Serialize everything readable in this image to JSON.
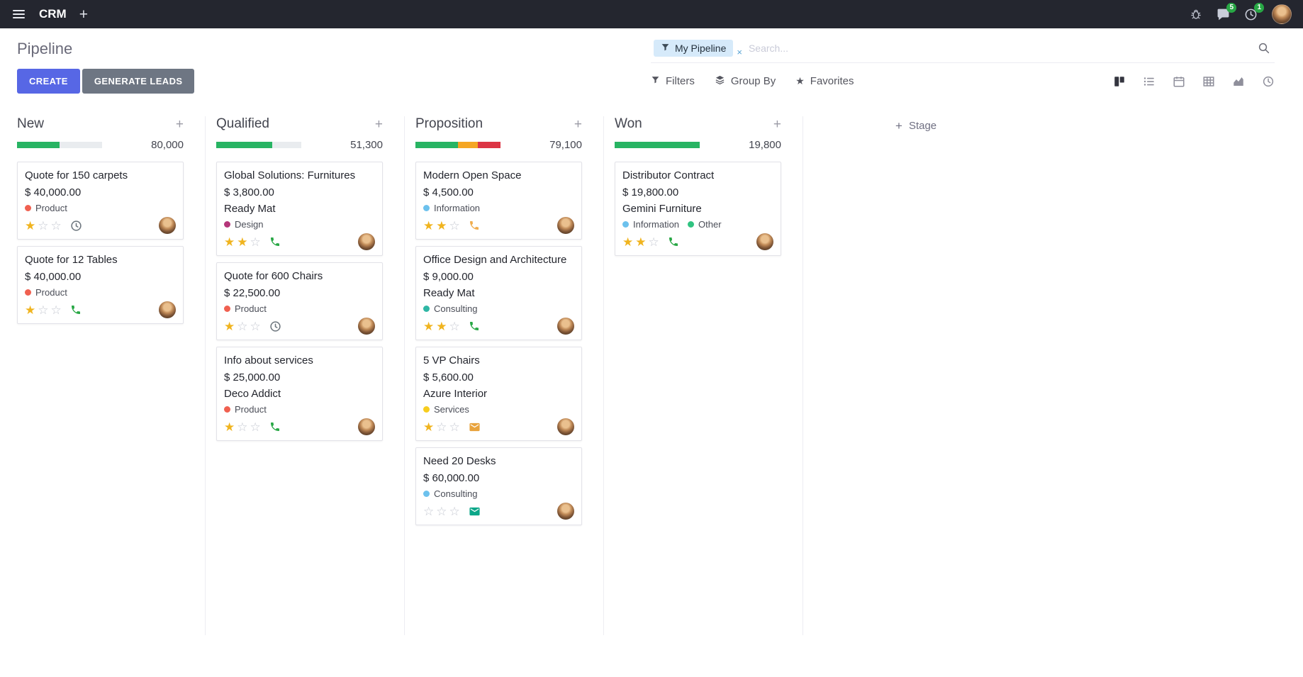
{
  "colors": {
    "navbar": "#24262f",
    "primary": "#5767e5",
    "secondary": "#6e7683",
    "star": "#f0b41f",
    "badge": "#28a745"
  },
  "icons": {
    "plus": "+",
    "close": "×"
  },
  "topbar": {
    "app_name": "CRM",
    "messages_badge": "5",
    "activities_badge": "1"
  },
  "control_panel": {
    "title": "Pipeline",
    "buttons": {
      "create": "CREATE",
      "generate_leads": "GENERATE LEADS"
    },
    "menus": {
      "filters": "Filters",
      "group_by": "Group By",
      "favorites": "Favorites"
    },
    "search": {
      "facet": "My Pipeline",
      "placeholder": "Search..."
    },
    "view_switcher": {
      "active": "kanban",
      "views": [
        "kanban",
        "list",
        "calendar",
        "pivot",
        "graph",
        "activity"
      ]
    }
  },
  "board": {
    "add_stage_label": "Stage",
    "columns": [
      {
        "name": "New",
        "total": "80,000",
        "progress": [
          {
            "color": "#28b463",
            "pct": 50
          }
        ],
        "cards": [
          {
            "title": "Quote for 150 carpets",
            "amount": "$ 40,000.00",
            "partner": "",
            "tags": [
              {
                "label": "Product",
                "color": "#f06050"
              }
            ],
            "stars": 1,
            "activity": {
              "type": "clock",
              "color": "#6c757d"
            }
          },
          {
            "title": "Quote for 12 Tables",
            "amount": "$ 40,000.00",
            "partner": "",
            "tags": [
              {
                "label": "Product",
                "color": "#f06050"
              }
            ],
            "stars": 1,
            "activity": {
              "type": "phone",
              "color": "#28a745"
            }
          }
        ]
      },
      {
        "name": "Qualified",
        "total": "51,300",
        "progress": [
          {
            "color": "#28b463",
            "pct": 66
          }
        ],
        "cards": [
          {
            "title": "Global Solutions: Furnitures",
            "amount": "$ 3,800.00",
            "partner": "Ready Mat",
            "tags": [
              {
                "label": "Design",
                "color": "#b5367a"
              }
            ],
            "stars": 2,
            "activity": {
              "type": "phone",
              "color": "#28a745"
            }
          },
          {
            "title": "Quote for 600 Chairs",
            "amount": "$ 22,500.00",
            "partner": "",
            "tags": [
              {
                "label": "Product",
                "color": "#f06050"
              }
            ],
            "stars": 1,
            "activity": {
              "type": "clock",
              "color": "#6c757d"
            }
          },
          {
            "title": "Info about services",
            "amount": "$ 25,000.00",
            "partner": "Deco Addict",
            "tags": [
              {
                "label": "Product",
                "color": "#f06050"
              }
            ],
            "stars": 1,
            "activity": {
              "type": "phone",
              "color": "#28a745"
            }
          }
        ]
      },
      {
        "name": "Proposition",
        "total": "79,100",
        "progress": [
          {
            "color": "#28b463",
            "pct": 50
          },
          {
            "color": "#f5a623",
            "pct": 23
          },
          {
            "color": "#dc3545",
            "pct": 27
          }
        ],
        "cards": [
          {
            "title": "Modern Open Space",
            "amount": "$ 4,500.00",
            "partner": "",
            "tags": [
              {
                "label": "Information",
                "color": "#6cc1ed"
              }
            ],
            "stars": 2,
            "activity": {
              "type": "phone",
              "color": "#f0ad4e"
            }
          },
          {
            "title": "Office Design and Architecture",
            "amount": "$ 9,000.00",
            "partner": "Ready Mat",
            "tags": [
              {
                "label": "Consulting",
                "color": "#2fb7a5"
              }
            ],
            "stars": 2,
            "activity": {
              "type": "phone",
              "color": "#28a745"
            }
          },
          {
            "title": "5 VP Chairs",
            "amount": "$ 5,600.00",
            "partner": "Azure Interior",
            "tags": [
              {
                "label": "Services",
                "color": "#f7cd1f"
              }
            ],
            "stars": 1,
            "activity": {
              "type": "envelope",
              "color": "#e8a33d"
            }
          },
          {
            "title": "Need 20 Desks",
            "amount": "$ 60,000.00",
            "partner": "",
            "tags": [
              {
                "label": "Consulting",
                "color": "#6cc1ed"
              }
            ],
            "stars": 0,
            "activity": {
              "type": "envelope",
              "color": "#0ca789"
            }
          }
        ]
      },
      {
        "name": "Won",
        "total": "19,800",
        "progress": [
          {
            "color": "#28b463",
            "pct": 100
          }
        ],
        "cards": [
          {
            "title": "Distributor Contract",
            "amount": "$ 19,800.00",
            "partner": "Gemini Furniture",
            "tags": [
              {
                "label": "Information",
                "color": "#6cc1ed"
              },
              {
                "label": "Other",
                "color": "#30c381"
              }
            ],
            "stars": 2,
            "activity": {
              "type": "phone",
              "color": "#28a745"
            }
          }
        ]
      }
    ]
  }
}
